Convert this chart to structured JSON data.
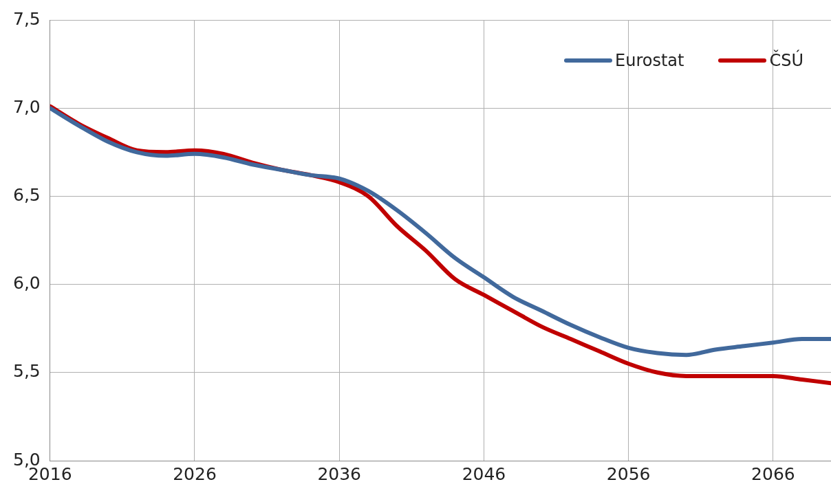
{
  "chart_data": {
    "type": "line",
    "x": [
      2016,
      2018,
      2020,
      2022,
      2024,
      2026,
      2028,
      2030,
      2032,
      2034,
      2036,
      2038,
      2040,
      2042,
      2044,
      2046,
      2048,
      2050,
      2052,
      2054,
      2056,
      2058,
      2060,
      2062,
      2064,
      2066,
      2068,
      2070
    ],
    "series": [
      {
        "name": "Eurostat",
        "color": "#41699c",
        "values": [
          7.0,
          6.9,
          6.81,
          6.75,
          6.73,
          6.74,
          6.72,
          6.68,
          6.65,
          6.62,
          6.6,
          6.53,
          6.42,
          6.29,
          6.15,
          6.04,
          5.93,
          5.85,
          5.77,
          5.7,
          5.64,
          5.61,
          5.6,
          5.63,
          5.65,
          5.67,
          5.69,
          5.69
        ]
      },
      {
        "name": "ČSÚ",
        "color": "#c00000",
        "values": [
          7.01,
          6.91,
          6.83,
          6.76,
          6.75,
          6.76,
          6.74,
          6.69,
          6.65,
          6.62,
          6.58,
          6.5,
          6.33,
          6.19,
          6.03,
          5.94,
          5.85,
          5.76,
          5.69,
          5.62,
          5.55,
          5.5,
          5.48,
          5.48,
          5.48,
          5.48,
          5.46,
          5.44
        ]
      }
    ],
    "xlim": [
      2016,
      2070
    ],
    "xticks": [
      2016,
      2026,
      2036,
      2046,
      2056,
      2066
    ],
    "ylim": [
      5.0,
      7.5
    ],
    "yticks": [
      {
        "value": 5.0,
        "label": "5,0"
      },
      {
        "value": 5.5,
        "label": "5,5"
      },
      {
        "value": 6.0,
        "label": "6,0"
      },
      {
        "value": 6.5,
        "label": "6,5"
      },
      {
        "value": 7.0,
        "label": "7,0"
      },
      {
        "value": 7.5,
        "label": "7,5"
      }
    ],
    "grid": true,
    "legend": "top right",
    "marker": "none",
    "line_style": "solid"
  }
}
